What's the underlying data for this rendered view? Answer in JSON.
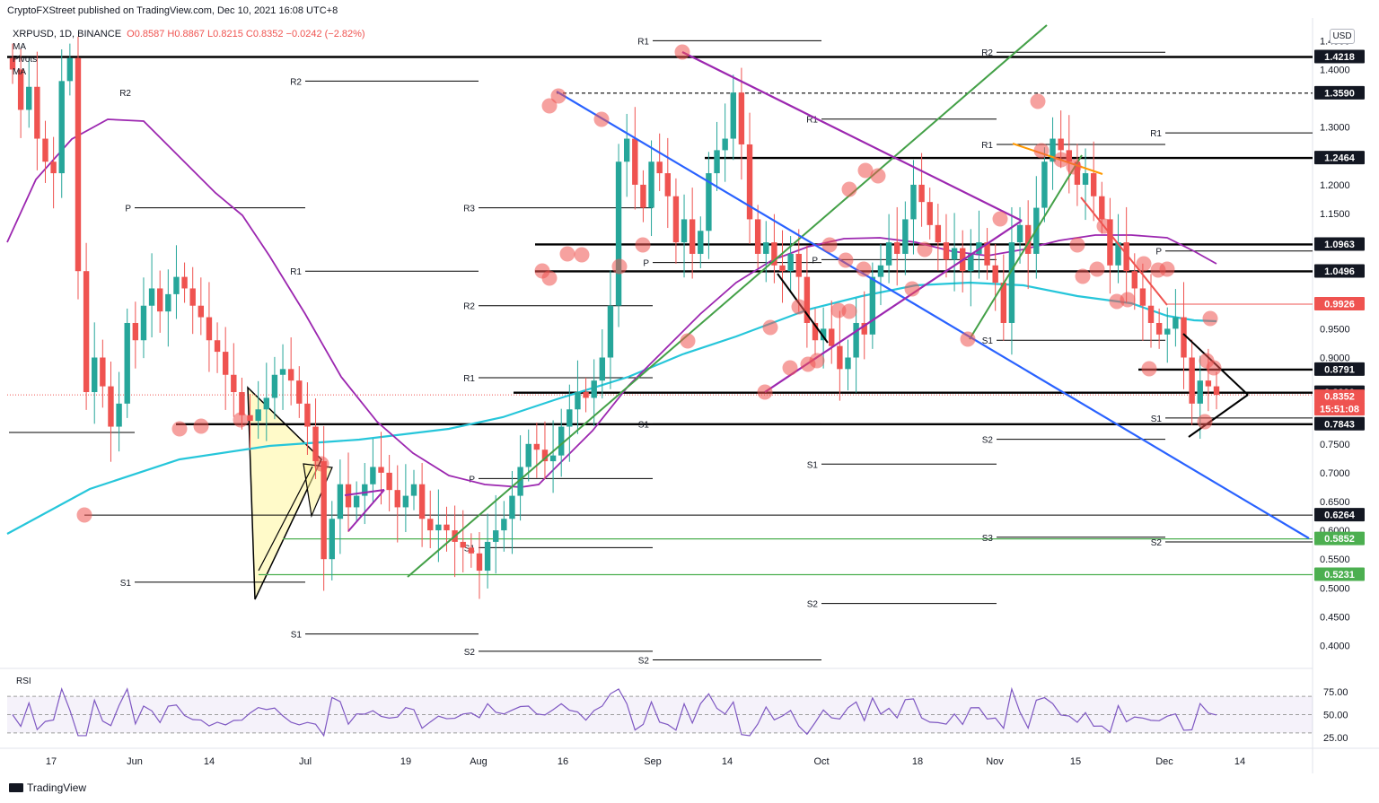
{
  "header": {
    "publish_line": "CryptoFXStreet published on TradingView.com, Dec 10, 2021 16:08 UTC+8",
    "symbol_info": "XRPUSD, 1D, BINANCE",
    "ohlc": "O0.8587 H0.8867 L0.8215 C0.8352 −0.0242 (−2.82%)",
    "indicators": [
      "MA",
      "Pivots",
      "MA"
    ],
    "currency_button": "USD"
  },
  "footer": {
    "brand": "TradingView"
  },
  "chart_data": {
    "type": "candlestick",
    "symbol": "XRPUSD",
    "timeframe": "1D",
    "exchange": "BINANCE",
    "ylim": [
      0.35,
      1.47
    ],
    "y_ticks": [
      1.45,
      1.4,
      1.3,
      1.2,
      1.15,
      1.0,
      0.95,
      0.9,
      0.75,
      0.7,
      0.65,
      0.6,
      0.55,
      0.5,
      0.45,
      0.4
    ],
    "x_ticks": [
      "17",
      "Jun",
      "14",
      "Jul",
      "19",
      "Aug",
      "16",
      "Sep",
      "14",
      "Oct",
      "18",
      "Nov",
      "15",
      "Dec",
      "14"
    ],
    "price_labels": [
      {
        "value": "1.4218",
        "style": "dark"
      },
      {
        "value": "1.3590",
        "style": "dark"
      },
      {
        "value": "1.2464",
        "style": "dark"
      },
      {
        "value": "1.0963",
        "style": "dark"
      },
      {
        "value": "1.0496",
        "style": "dark"
      },
      {
        "value": "0.9926",
        "style": "red"
      },
      {
        "value": "0.8791",
        "style": "dark"
      },
      {
        "value": "0.8390",
        "style": "dark"
      },
      {
        "value": "0.8352",
        "style": "red"
      },
      {
        "value": "15:51:08",
        "style": "red"
      },
      {
        "value": "0.7843",
        "style": "dark"
      },
      {
        "value": "0.6264",
        "style": "dark"
      },
      {
        "value": "0.5852",
        "style": "green"
      },
      {
        "value": "0.5231",
        "style": "green"
      }
    ],
    "key_levels": [
      1.4218,
      1.359,
      1.2464,
      1.0963,
      1.0496,
      0.8791,
      0.839,
      0.7843,
      0.6264,
      0.5852,
      0.5231
    ],
    "pivot_labels": [
      "R1",
      "R2",
      "R3",
      "P",
      "S1",
      "S2",
      "S3"
    ],
    "last_price": 0.8352,
    "closes": [
      1.4,
      1.33,
      1.37,
      1.28,
      1.24,
      1.22,
      1.38,
      1.42,
      1.05,
      0.84,
      0.9,
      0.85,
      0.78,
      0.82,
      0.96,
      0.93,
      0.99,
      1.02,
      0.98,
      1.01,
      1.04,
      1.02,
      0.99,
      0.97,
      0.93,
      0.91,
      0.87,
      0.84,
      0.8,
      0.79,
      0.81,
      0.83,
      0.87,
      0.88,
      0.86,
      0.82,
      0.78,
      0.72,
      0.55,
      0.62,
      0.68,
      0.64,
      0.66,
      0.68,
      0.71,
      0.7,
      0.67,
      0.64,
      0.66,
      0.68,
      0.62,
      0.6,
      0.61,
      0.6,
      0.58,
      0.57,
      0.56,
      0.53,
      0.58,
      0.6,
      0.62,
      0.66,
      0.71,
      0.75,
      0.74,
      0.72,
      0.73,
      0.78,
      0.81,
      0.84,
      0.83,
      0.86,
      0.9,
      0.99,
      1.24,
      1.28,
      1.2,
      1.16,
      1.24,
      1.22,
      1.18,
      1.1,
      1.14,
      1.08,
      1.12,
      1.22,
      1.26,
      1.28,
      1.36,
      1.27,
      1.14,
      1.08,
      1.1,
      1.06,
      1.05,
      1.08,
      1.04,
      0.96,
      0.93,
      0.95,
      0.92,
      0.88,
      0.9,
      0.96,
      0.94,
      1.04,
      1.06,
      1.1,
      1.08,
      1.14,
      1.2,
      1.17,
      1.13,
      1.1,
      1.07,
      1.09,
      1.05,
      1.08,
      1.1,
      1.06,
      1.03,
      0.96,
      1.1,
      1.13,
      1.08,
      1.16,
      1.24,
      1.28,
      1.26,
      1.24,
      1.2,
      1.22,
      1.18,
      1.14,
      1.06,
      1.1,
      1.05,
      1.02,
      0.99,
      0.96,
      0.94,
      0.95,
      0.97,
      0.9,
      0.82,
      0.86,
      0.85,
      0.8352
    ]
  }
}
